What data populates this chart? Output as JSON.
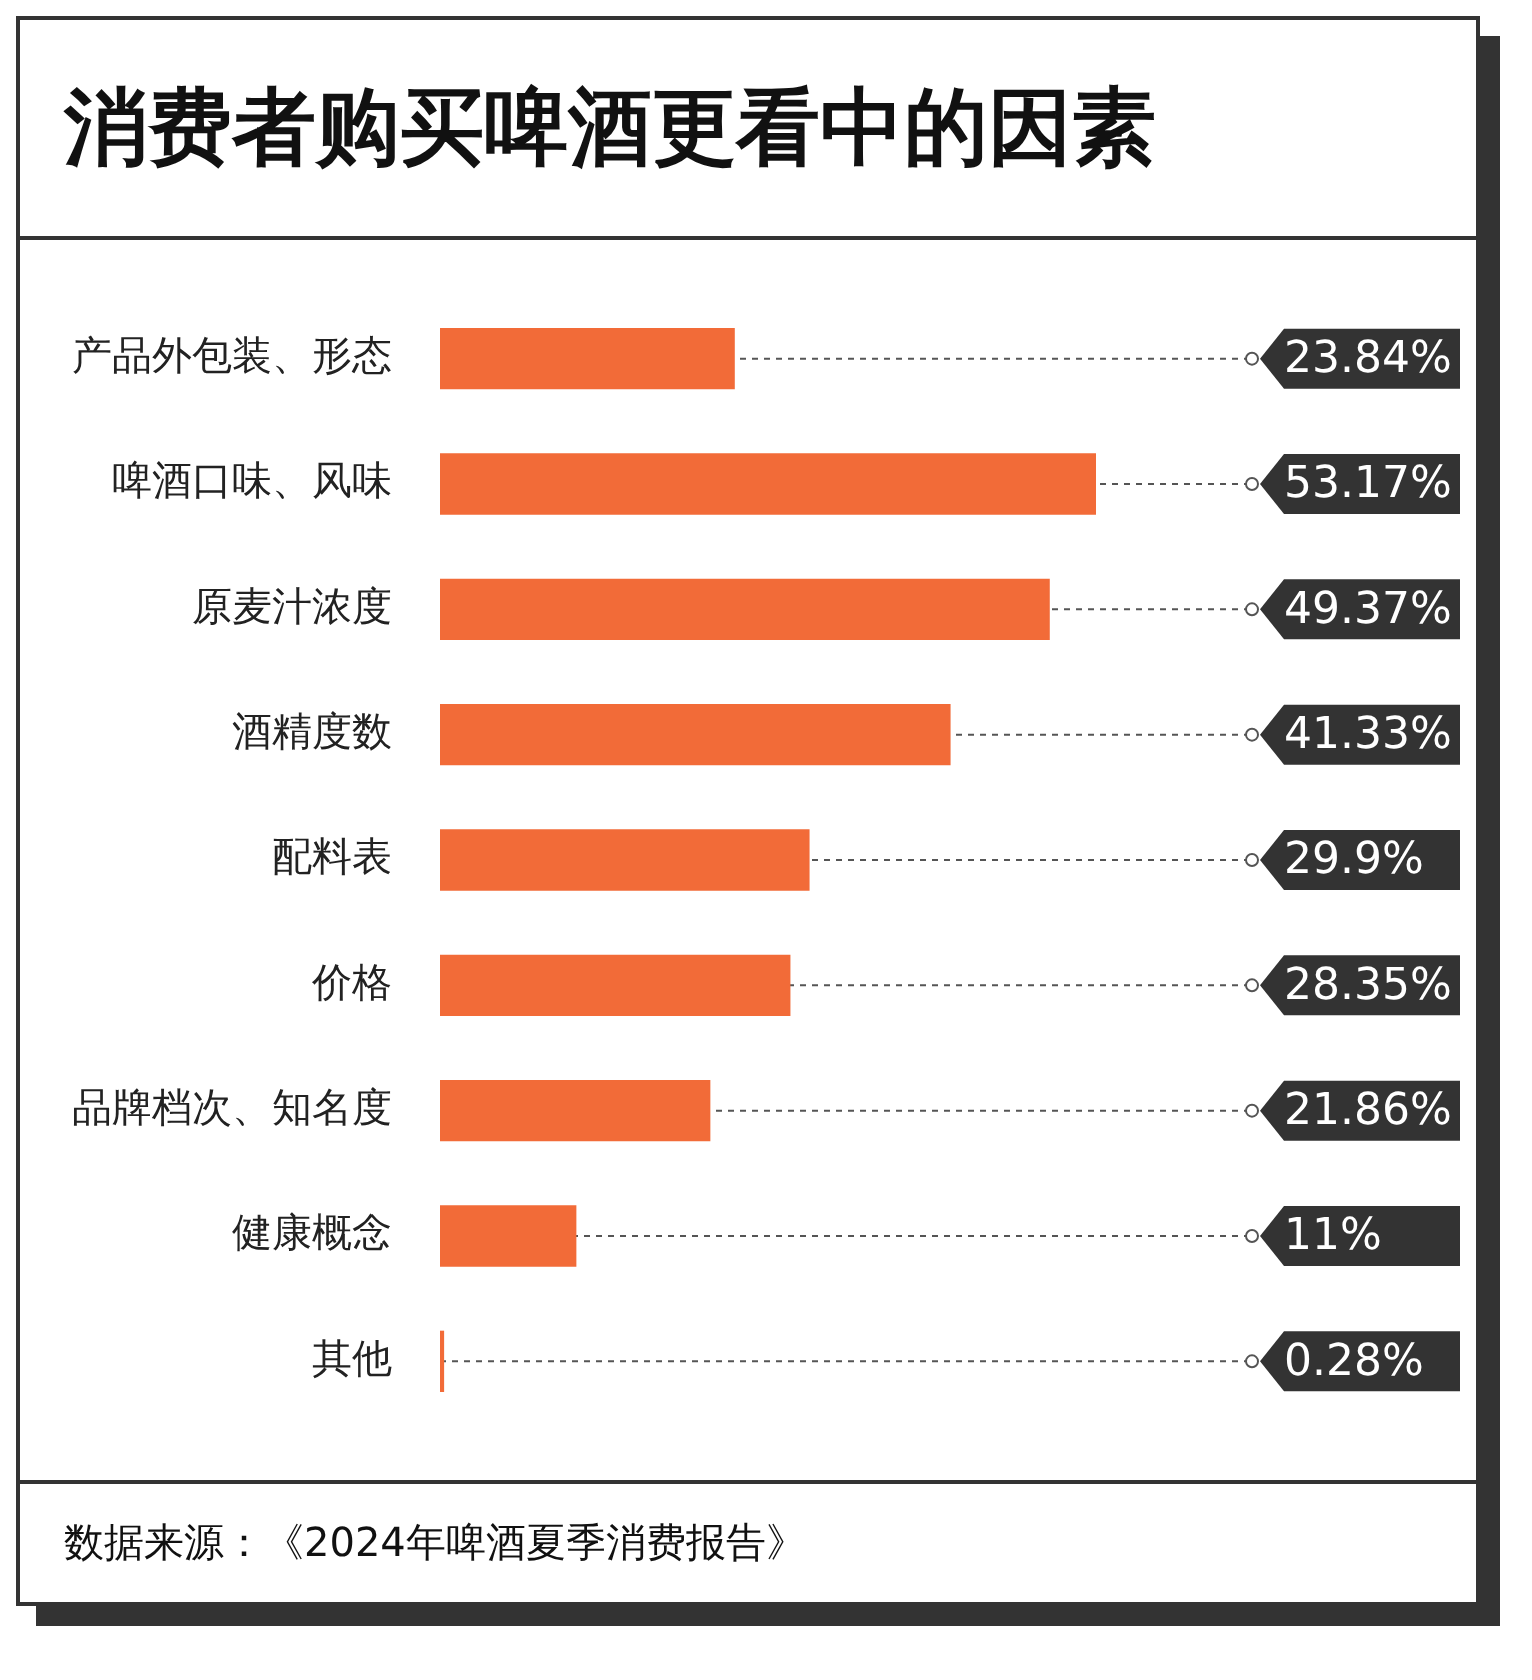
{
  "chart_data": {
    "type": "bar",
    "orientation": "horizontal",
    "title": "消费者购买啤酒更看中的因素",
    "categories": [
      "产品外包装、形态",
      "啤酒口味、风味",
      "原麦汁浓度",
      "酒精度数",
      "配料表",
      "价格",
      "品牌档次、知名度",
      "健康概念",
      "其他"
    ],
    "values": [
      23.84,
      53.17,
      49.37,
      41.33,
      29.9,
      28.35,
      21.86,
      11,
      0.28
    ],
    "value_labels": [
      "23.84%",
      "53.17%",
      "49.37%",
      "41.33%",
      "29.9%",
      "28.35%",
      "21.86%",
      "11%",
      "0.28%"
    ],
    "color": "#f26b38",
    "grid": false,
    "legend": false,
    "tick_labels": "y",
    "annotations": [
      "数据来源：《2024年啤酒夏季消费报告》"
    ]
  }
}
